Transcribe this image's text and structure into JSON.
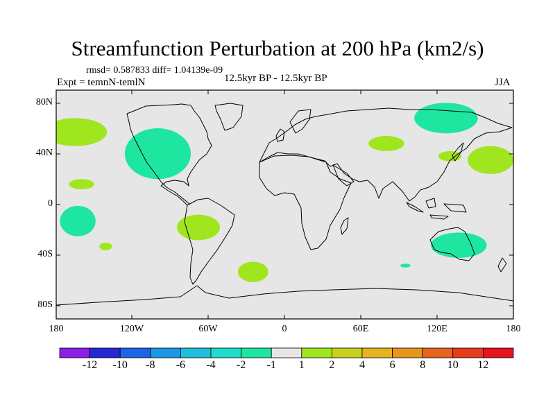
{
  "title": "Streamfunction Perturbation at 200 hPa (km2/s)",
  "stats": "rmsd= 0.587833 diff= 1.04139e-09",
  "experiment": "Expt = temnN-temlN",
  "period": "12.5kyr BP - 12.5kyr BP",
  "season": "JJA",
  "lat_labels": [
    "80N",
    "40N",
    "0",
    "40S",
    "80S"
  ],
  "lon_labels": [
    "180",
    "120W",
    "60W",
    "0",
    "60E",
    "120E",
    "180"
  ],
  "colorbar": {
    "colors": [
      "#8c1ee6",
      "#2828d2",
      "#1e64e6",
      "#1e96e6",
      "#1ebedc",
      "#1edcc8",
      "#1ee6a0",
      "#e6e6e6",
      "#a0e61e",
      "#c8d21e",
      "#e6b41e",
      "#e6961e",
      "#e6641e",
      "#e63c1e",
      "#e6141e"
    ],
    "labels": [
      "-12",
      "-10",
      "-8",
      "-6",
      "-4",
      "-2",
      "-1",
      "1",
      "2",
      "4",
      "6",
      "8",
      "10",
      "12"
    ]
  },
  "anomaly_patches": [
    {
      "region": "North Pacific west",
      "lon": -165,
      "lat": 57,
      "rlon": 25,
      "rlat": 11,
      "value": 1.5
    },
    {
      "region": "North America",
      "lon": -100,
      "lat": 40,
      "rlon": 26,
      "rlat": 20,
      "value": -1.5
    },
    {
      "region": "Subtropical Pacific",
      "lon": -160,
      "lat": 16,
      "rlon": 10,
      "rlat": 4,
      "value": 1.5
    },
    {
      "region": "Tropical South Pacific",
      "lon": -163,
      "lat": -13,
      "rlon": 14,
      "rlat": 12,
      "value": -1.5
    },
    {
      "region": "South Pacific small",
      "lon": -141,
      "lat": -33,
      "rlon": 5,
      "rlat": 3,
      "value": 1.5
    },
    {
      "region": "South America",
      "lon": -68,
      "lat": -18,
      "rlon": 17,
      "rlat": 10,
      "value": 1.5
    },
    {
      "region": "South Atlantic",
      "lon": -25,
      "lat": -53,
      "rlon": 12,
      "rlat": 8,
      "value": 1.5
    },
    {
      "region": "Central Asia",
      "lon": 80,
      "lat": 48,
      "rlon": 14,
      "rlat": 6,
      "value": 1.5
    },
    {
      "region": "Siberia",
      "lon": 127,
      "lat": 68,
      "rlon": 25,
      "rlat": 12,
      "value": -1.5
    },
    {
      "region": "East Asia",
      "lon": 130,
      "lat": 38,
      "rlon": 9,
      "rlat": 4,
      "value": 1.5
    },
    {
      "region": "North Pacific east",
      "lon": 162,
      "lat": 35,
      "rlon": 18,
      "rlat": 11,
      "value": 1.5
    },
    {
      "region": "Australia",
      "lon": 137,
      "lat": -32,
      "rlon": 22,
      "rlat": 10,
      "value": -1.5
    },
    {
      "region": "Indian Ocean small",
      "lon": 95,
      "lat": -48,
      "rlon": 4,
      "rlat": 1.5,
      "value": -1.5
    }
  ]
}
